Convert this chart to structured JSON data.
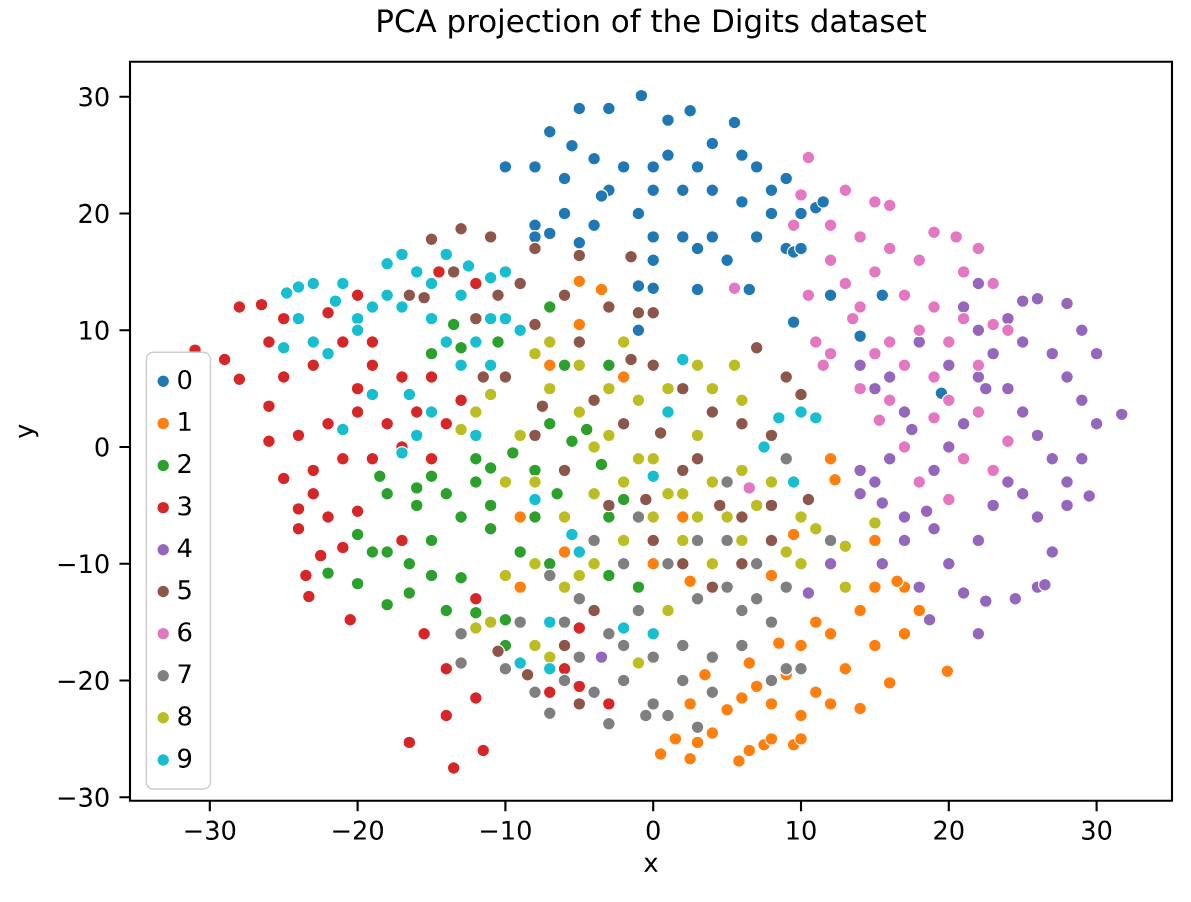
{
  "chart_data": {
    "type": "scatter",
    "title": "PCA projection of the Digits dataset",
    "xlabel": "x",
    "ylabel": "y",
    "xlim": [
      -35.4,
      35.1
    ],
    "ylim": [
      -30.3,
      33.0
    ],
    "xticks": [
      {
        "value": -30,
        "label": "−30"
      },
      {
        "value": -20,
        "label": "−20"
      },
      {
        "value": -10,
        "label": "−10"
      },
      0,
      10,
      20,
      30
    ],
    "yticks": [
      {
        "value": -30,
        "label": "−30"
      },
      {
        "value": -20,
        "label": "−20"
      },
      {
        "value": -10,
        "label": "−10"
      },
      0,
      10,
      20,
      30
    ],
    "grid": false,
    "legend": "bottom left",
    "marker": "circle",
    "series": [
      {
        "name": "0",
        "color": "#1f77b4",
        "x": [
          -0.8,
          -5,
          -3,
          2.5,
          5.5,
          1,
          -7,
          -5.5,
          -4,
          -2,
          0,
          1,
          3,
          4,
          6,
          7,
          8,
          9,
          -8,
          -10,
          -6,
          -3,
          0,
          2,
          4,
          6,
          8,
          10,
          -8,
          -4,
          -1,
          0,
          2,
          4,
          7,
          9,
          -8,
          -5,
          0,
          3,
          5,
          9.5,
          11,
          11.5,
          12,
          10,
          9.5,
          14,
          15.5,
          19.5,
          -1,
          0,
          -1,
          3,
          6.5,
          -7,
          -6,
          -3.5
        ],
        "values": [
          30.1,
          29,
          29,
          28.8,
          27.8,
          28,
          27,
          25.8,
          24.7,
          24,
          24,
          25,
          24,
          26,
          25,
          24,
          22,
          23,
          24,
          24,
          23,
          22,
          22,
          22,
          22,
          21,
          20,
          20,
          19,
          19,
          20,
          18,
          18,
          18,
          18,
          17,
          18,
          17.5,
          16,
          17,
          16,
          16.7,
          20.5,
          21,
          13,
          17,
          10.7,
          9.5,
          13,
          4.6,
          13.8,
          13.6,
          10,
          13.5,
          13.5,
          18.3,
          20,
          21.5
        ]
      },
      {
        "name": "1",
        "color": "#ff7f0e",
        "x": [
          0.5,
          2.5,
          3,
          5.8,
          6.5,
          7.5,
          8,
          9.5,
          10,
          4,
          5,
          6,
          7,
          8,
          9,
          10,
          11,
          12,
          13,
          14,
          15,
          16,
          17,
          18,
          19.9,
          14,
          15,
          17,
          12,
          10,
          11,
          8.5,
          6.5,
          3.5,
          2.5,
          1.5,
          16.5,
          12,
          12.3,
          9.5,
          -5,
          -5,
          -3.5,
          -7,
          -2,
          -9,
          -6,
          8,
          15,
          -9,
          2.5,
          2,
          0
        ],
        "values": [
          -26.3,
          -26.7,
          -25.3,
          -26.9,
          -26,
          -25.5,
          -25,
          -25.5,
          -25,
          -24.5,
          -22.5,
          -21.5,
          -20.5,
          -22,
          -19.5,
          -23,
          -21,
          -22,
          -19,
          -22.4,
          -17,
          -20.2,
          -16,
          -14,
          -19.2,
          -14,
          -12,
          -12,
          -16,
          -17,
          -15,
          -16.8,
          -18.5,
          -19.5,
          -22,
          -25,
          -11.5,
          -1,
          -2.8,
          -7.5,
          14.2,
          10.5,
          13.5,
          7,
          6,
          -6,
          -9,
          -11,
          -8,
          -12,
          -11.5,
          -6,
          -10
        ]
      },
      {
        "name": "2",
        "color": "#2ca02c",
        "x": [
          -22,
          -20,
          -18,
          -16.5,
          -15,
          -13,
          -12,
          -10,
          -19,
          -16.5,
          -15,
          -13,
          -11,
          -9,
          -7,
          -3,
          -1,
          -20,
          -18,
          -16,
          -14,
          -12,
          -11,
          -8,
          -5.5,
          -2,
          -15,
          -12,
          -9.5,
          -7,
          -4.5,
          -3.5,
          -11,
          -8,
          -6.5,
          -3,
          -13,
          -15,
          -10.5,
          -13.5,
          -6,
          -7,
          -3,
          -18,
          -14,
          -10,
          -16,
          -18.5
        ],
        "values": [
          -10.8,
          -11.7,
          -13.5,
          -12.5,
          -11,
          -11.2,
          -14.2,
          -14.8,
          -9,
          -10,
          -8,
          -6,
          -7,
          -9,
          -10,
          -11,
          -12,
          -7.5,
          -4,
          -5,
          -4,
          -3,
          -1.8,
          -2,
          0.5,
          -4.5,
          -2.5,
          -1,
          -0.5,
          2,
          1.5,
          -1.5,
          -5,
          -6,
          -4,
          -6,
          8.5,
          8,
          9,
          10.5,
          7,
          12,
          7,
          -9,
          -14,
          -17,
          -3.5,
          -2.5
        ]
      },
      {
        "name": "3",
        "color": "#d62728",
        "x": [
          -31,
          -28,
          -26.5,
          -25,
          -26,
          -29,
          -28,
          -26,
          -25,
          -23,
          -21,
          -22,
          -19,
          -19,
          -17,
          -20,
          -15,
          -16,
          -18,
          -20,
          -22,
          -24,
          -26,
          -23,
          -25,
          -21,
          -19,
          -17,
          -15,
          -14,
          -13,
          -23,
          -24,
          -22,
          -20,
          -24,
          -22.5,
          -21,
          -23.5,
          -23.3,
          -20.5,
          -17,
          -15.5,
          -16.5,
          -14,
          -13.5,
          -11.5,
          -12,
          -14,
          -6,
          -7,
          -5,
          -3,
          -12,
          -14.5,
          -12,
          -20,
          -5
        ],
        "values": [
          8.3,
          12,
          12.2,
          11,
          9,
          7.5,
          5.8,
          3.5,
          6,
          7,
          9,
          11.5,
          9,
          7,
          6,
          5,
          6,
          3,
          2,
          3,
          2,
          1,
          0.5,
          -2,
          -2.7,
          -1,
          -1,
          0,
          -1,
          2,
          4,
          -4,
          -5.3,
          -6,
          -5.5,
          -7,
          -9.3,
          -8.6,
          -11,
          -12.8,
          -14.8,
          -8,
          -16,
          -25.3,
          -23,
          -27.5,
          -26,
          -21.5,
          -19,
          -19,
          -21,
          -15.5,
          -22,
          -13,
          15,
          14,
          13,
          -20.5
        ]
      },
      {
        "name": "4",
        "color": "#9467bd",
        "x": [
          31.7,
          30,
          29,
          28,
          26,
          25,
          24,
          22,
          21,
          22,
          23,
          25,
          27,
          28,
          29,
          30,
          29,
          29.5,
          28,
          27,
          26,
          25,
          24,
          22.5,
          21,
          20,
          19,
          18.5,
          17,
          15,
          14,
          16,
          17,
          18,
          20,
          22,
          23,
          24,
          25,
          26,
          27,
          26,
          24.5,
          22.5,
          22,
          21,
          18.7,
          15.5,
          15.5,
          14,
          17,
          16,
          18,
          20,
          22,
          19,
          17.5,
          15,
          14,
          28,
          26.5,
          10.5,
          -3.5,
          12
        ],
        "values": [
          2.8,
          8,
          10,
          12.3,
          12.7,
          12.5,
          11,
          14,
          12,
          10,
          8,
          9,
          8,
          6,
          4,
          2,
          -1,
          -4.2,
          -3,
          -1,
          1,
          3,
          5,
          5,
          2,
          0,
          -2,
          -5.5,
          -6,
          -3,
          -4,
          -1,
          -8,
          -12,
          -10,
          -8,
          -5,
          -3,
          -4,
          -6,
          -9,
          -12,
          -13,
          -13.2,
          -16,
          -12.5,
          -14.8,
          -10,
          -4.8,
          -2,
          3,
          6,
          9,
          7,
          6,
          -7,
          1.5,
          5,
          7,
          -5,
          -11.8,
          -12.5,
          -18,
          -10
        ]
      },
      {
        "name": "5",
        "color": "#8c564b",
        "x": [
          -13,
          -15,
          -11,
          -8,
          -5,
          -1.5,
          -13.5,
          -16.5,
          -10.5,
          -9,
          -6,
          -3,
          0,
          -1,
          -15.5,
          -12,
          -8,
          -5,
          -1.5,
          0,
          2,
          4,
          6,
          8,
          -11.5,
          -10,
          -7.5,
          -4,
          -2,
          0.5,
          2,
          4.5,
          6,
          8,
          10.5,
          7,
          9,
          10,
          -8,
          -6,
          -3,
          0,
          2,
          4,
          6,
          8,
          3,
          -4,
          -6,
          -8.5,
          -5,
          -10.5,
          -0.5
        ],
        "values": [
          18.7,
          17.8,
          18,
          17,
          16.4,
          16.3,
          15,
          13,
          13,
          14,
          13,
          12,
          11.5,
          11.5,
          12.8,
          11,
          10.5,
          9,
          7.5,
          7,
          5,
          3,
          2,
          1,
          6,
          6,
          3.5,
          4,
          2,
          1.2,
          -2,
          -5,
          -6,
          -8,
          -4.5,
          8.5,
          6,
          4.5,
          1,
          -2,
          -5,
          -8,
          -10,
          -12,
          -10,
          -5,
          -1,
          -14,
          -17,
          -19.5,
          -22,
          -17.5,
          -4.5
        ]
      },
      {
        "name": "6",
        "color": "#e377c2",
        "x": [
          10.5,
          13,
          15,
          16,
          10,
          9.5,
          12,
          14,
          16,
          18,
          19,
          20.5,
          22,
          21,
          23,
          12,
          13,
          14,
          15,
          17,
          19,
          21,
          23,
          24,
          18,
          16,
          15,
          14,
          17,
          19,
          20,
          22,
          24,
          23,
          21,
          20,
          18,
          17,
          15.3,
          16,
          11,
          12,
          11.5,
          10.5,
          5.5,
          6.5,
          22,
          20,
          13.5,
          19
        ],
        "values": [
          24.8,
          22,
          21,
          20.7,
          21.6,
          19,
          19,
          18,
          17,
          16,
          18.4,
          18,
          17,
          15,
          14,
          16,
          14,
          12,
          15,
          13,
          12,
          11,
          10.5,
          10,
          10,
          9,
          8,
          5,
          7,
          6,
          4,
          3,
          0.5,
          -2,
          -1,
          -4.5,
          -3,
          0,
          2.3,
          4,
          9,
          8,
          7,
          13,
          13.6,
          -3.5,
          7,
          9,
          11,
          2.5
        ]
      },
      {
        "name": "7",
        "color": "#7f7f7f",
        "x": [
          -13,
          -13,
          -10,
          -8,
          -7,
          -6,
          -4,
          -2,
          0,
          1,
          3,
          -3,
          -0.5,
          2,
          4,
          6,
          8,
          9,
          10,
          -5,
          -3,
          -1,
          3,
          5,
          7,
          -5,
          -2,
          1,
          3,
          5,
          7,
          9,
          -7,
          -4,
          -1,
          -6,
          0,
          2,
          8,
          -9,
          6,
          4,
          -2,
          9,
          5,
          12
        ],
        "values": [
          -16,
          -18.5,
          -19,
          -21,
          -22.8,
          -20,
          -21,
          -20,
          -22,
          -23,
          -24,
          -23.7,
          -23,
          -20,
          -18,
          -17,
          -15,
          -19,
          -19,
          -18,
          -16,
          -14,
          -13,
          -12,
          -13,
          -13,
          -10,
          -10,
          -8,
          -8,
          -10,
          -12,
          -11,
          -8,
          -6,
          -15,
          -18,
          -17,
          -20,
          -15,
          -14,
          -21,
          -17,
          -1,
          -3,
          -8
        ]
      },
      {
        "name": "8",
        "color": "#bcbd22",
        "x": [
          -13,
          -12,
          -11,
          -12,
          -11,
          -10,
          -8,
          -6,
          -4,
          -2,
          0,
          2,
          4,
          6,
          8,
          10,
          13,
          11,
          9,
          7,
          5,
          3,
          1,
          -1,
          -3,
          -5,
          -7,
          -8,
          -7,
          -5,
          -3,
          -1,
          1,
          3,
          5.5,
          4,
          -2,
          -9,
          -8,
          -6,
          -4,
          -2,
          0,
          2,
          4,
          6,
          10,
          15,
          13,
          -1,
          -7,
          -8,
          1,
          -5,
          -4,
          -10,
          3,
          6
        ],
        "values": [
          1.5,
          3,
          4.5,
          -15.5,
          -15,
          -11,
          -10,
          -12,
          -10,
          -8,
          -6,
          -4,
          -3,
          -2,
          -3,
          -6,
          -8.5,
          -7,
          -9,
          -5,
          -6,
          -6,
          -4,
          -1,
          1,
          3,
          5,
          8,
          9,
          7,
          5,
          4,
          5,
          7,
          7,
          5,
          9,
          1,
          -3,
          -6,
          -4,
          -3,
          -1,
          -8,
          -10,
          -8,
          -10,
          -6.5,
          -12,
          -18.5,
          -18,
          -17,
          -14,
          -11,
          0,
          -3,
          1,
          4
        ]
      },
      {
        "name": "9",
        "color": "#17becf",
        "x": [
          -24.8,
          -24,
          -23,
          -21,
          -21.5,
          -19,
          -18,
          -17,
          -16,
          -15,
          -14,
          -18,
          -20,
          -24,
          -22,
          -20,
          -17,
          -15,
          -13,
          -11,
          -10,
          -11,
          -9,
          -10,
          -12,
          -14,
          -13,
          -11,
          -15,
          -16,
          -17,
          -12,
          -8,
          -5.5,
          -5,
          -7,
          -7,
          -9,
          -2,
          0,
          -19,
          2,
          1,
          0,
          8.5,
          7.5,
          10,
          11,
          9.5,
          -16.5,
          -23,
          -12.5,
          -25,
          -21
        ],
        "values": [
          13.2,
          13.7,
          14,
          14,
          12.5,
          12,
          15.7,
          16.5,
          15,
          14,
          16.5,
          13,
          11,
          11,
          8,
          10,
          12,
          11,
          13,
          14.5,
          15,
          11,
          10,
          11,
          9,
          9,
          7,
          7,
          3,
          1,
          -0.5,
          1,
          -4.5,
          -7.5,
          -9,
          -15,
          -19,
          -18.5,
          -15.5,
          -16,
          4.5,
          7.5,
          3,
          -2.5,
          2.5,
          0,
          3,
          2.5,
          -3,
          4.5,
          9,
          15.5,
          8.5,
          1.5
        ]
      }
    ]
  }
}
